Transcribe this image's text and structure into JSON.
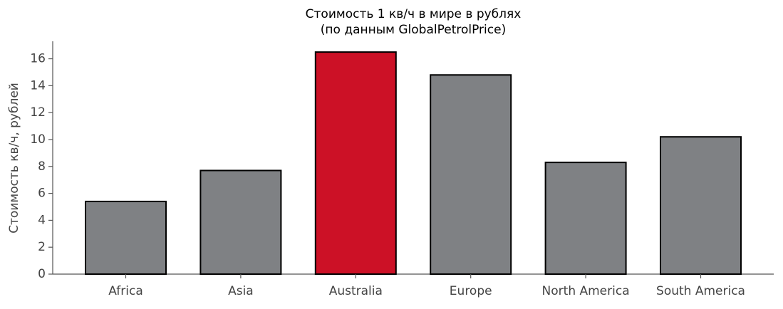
{
  "chart_data": {
    "type": "bar",
    "title": "Стоимость 1 кв/ч в мире в рублях",
    "subtitle": "(по данным GlobalPetrolPrice)",
    "y_label": "Стоимость кв/ч, рублей",
    "categories": [
      "Africa",
      "Asia",
      "Australia",
      "Europe",
      "North America",
      "South America"
    ],
    "values": [
      5.4,
      7.7,
      16.5,
      14.8,
      8.3,
      10.2
    ],
    "colors": [
      "#7f8184",
      "#7f8184",
      "#cc1126",
      "#7f8184",
      "#7f8184",
      "#7f8184"
    ],
    "edge_color": "#000000",
    "ylim": [
      0,
      17.3
    ],
    "yticks": [
      0,
      2,
      4,
      6,
      8,
      10,
      12,
      14,
      16
    ],
    "grid": false
  }
}
